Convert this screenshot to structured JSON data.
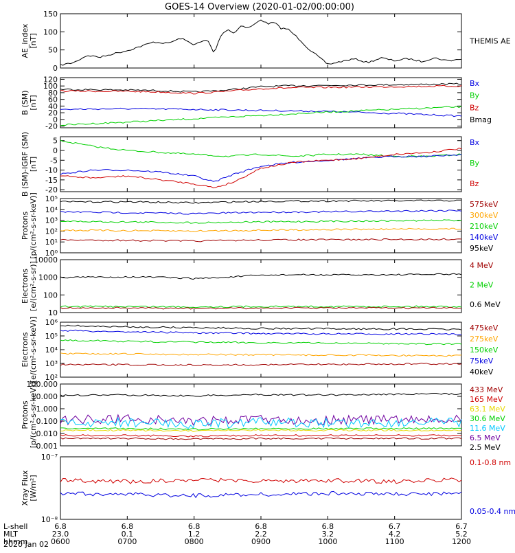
{
  "title": "GOES-14 Overview (2020-01-02/00:00:00)",
  "date_label": "2020 Jan 02",
  "footer": {
    "rows": [
      {
        "label": "L-shell",
        "values": [
          "6.8",
          "6.8",
          "6.8",
          "6.8",
          "6.8",
          "6.7",
          "6.7"
        ]
      },
      {
        "label": "MLT",
        "values": [
          "23.0",
          "0.1",
          "1.2",
          "2.2",
          "3.2",
          "4.2",
          "5.2"
        ]
      },
      {
        "label": "hhmm",
        "values": [
          "0600",
          "0700",
          "0800",
          "0900",
          "1000",
          "1100",
          "1200"
        ]
      }
    ]
  },
  "colors": {
    "black": "#000000",
    "blue": "#0000e0",
    "green": "#00d000",
    "red": "#d00000",
    "orange": "#ffa500",
    "darkred": "#a00000",
    "yellow": "#e8d800",
    "cyan": "#00c8ff",
    "purple": "#7000a0"
  },
  "chart_data": [
    {
      "type": "line",
      "ylabel": "AE_index\n[nT]",
      "yscale": "linear",
      "ylim": [
        0,
        150
      ],
      "yticks": [
        "0",
        "50",
        "100",
        "150"
      ],
      "legend": [
        {
          "name": "THEMIS AE",
          "color": "#000000"
        }
      ],
      "xlim": [
        6,
        12
      ],
      "series": [
        {
          "name": "THEMIS AE",
          "color": "#000000",
          "x": [
            6.0,
            6.2,
            6.4,
            6.6,
            6.8,
            7.0,
            7.2,
            7.4,
            7.6,
            7.8,
            8.0,
            8.2,
            8.3,
            8.4,
            8.5,
            8.6,
            8.7,
            8.8,
            8.9,
            9.0,
            9.1,
            9.2,
            9.3,
            9.4,
            9.5,
            9.6,
            9.7,
            9.8,
            10.0,
            10.2,
            10.4,
            10.6,
            10.8,
            11.0,
            11.2,
            11.4,
            11.6,
            11.8,
            12.0
          ],
          "y": [
            8,
            15,
            35,
            30,
            40,
            48,
            60,
            72,
            68,
            82,
            65,
            78,
            40,
            90,
            108,
            95,
            118,
            110,
            120,
            134,
            122,
            126,
            110,
            108,
            92,
            75,
            55,
            40,
            10,
            18,
            25,
            15,
            28,
            20,
            26,
            18,
            28,
            20,
            25
          ]
        }
      ]
    },
    {
      "type": "line",
      "ylabel": "B (SM)\n[nT]",
      "yscale": "linear",
      "ylim": [
        -25,
        125
      ],
      "yticks": [
        "-20",
        "0",
        "20",
        "40",
        "60",
        "80",
        "100",
        "120"
      ],
      "legend": [
        {
          "name": "Bx",
          "color": "#0000e0"
        },
        {
          "name": "By",
          "color": "#00d000"
        },
        {
          "name": "Bz",
          "color": "#d00000"
        },
        {
          "name": "Bmag",
          "color": "#000000"
        }
      ],
      "xlim": [
        6,
        12
      ],
      "series": [
        {
          "name": "Bmag",
          "color": "#000000",
          "x": [
            6.0,
            7.0,
            7.5,
            8.0,
            8.5,
            9.0,
            9.5,
            10.0,
            11.0,
            12.0
          ],
          "y": [
            90,
            88,
            86,
            82,
            88,
            98,
            101,
            102,
            104,
            106
          ]
        },
        {
          "name": "Bz",
          "color": "#d00000",
          "x": [
            6.0,
            7.0,
            7.5,
            8.0,
            8.5,
            9.0,
            9.5,
            10.0,
            11.0,
            12.0
          ],
          "y": [
            85,
            84,
            82,
            78,
            84,
            92,
            95,
            96,
            98,
            100
          ]
        },
        {
          "name": "Bx",
          "color": "#0000e0",
          "x": [
            6.0,
            7.0,
            8.0,
            9.0,
            10.0,
            11.0,
            12.0
          ],
          "y": [
            30,
            32,
            30,
            27,
            24,
            18,
            10
          ]
        },
        {
          "name": "By",
          "color": "#00d000",
          "x": [
            6.0,
            7.0,
            8.0,
            9.0,
            10.0,
            11.0,
            12.0
          ],
          "y": [
            -17,
            -8,
            2,
            12,
            22,
            30,
            38
          ]
        }
      ]
    },
    {
      "type": "line",
      "ylabel": "B (SM)-IGRF (SM)\n[nT]",
      "yscale": "linear",
      "ylim": [
        -21,
        7
      ],
      "yticks": [
        "-20",
        "-15",
        "-10",
        "-5",
        "0",
        "5"
      ],
      "legend": [
        {
          "name": "Bx",
          "color": "#0000e0"
        },
        {
          "name": "By",
          "color": "#00d000"
        },
        {
          "name": "Bz",
          "color": "#d00000"
        }
      ],
      "xlim": [
        6,
        12
      ],
      "series": [
        {
          "name": "By",
          "color": "#00d000",
          "x": [
            6.0,
            6.5,
            7.0,
            7.5,
            8.0,
            8.5,
            9.0,
            9.5,
            10.0,
            10.5,
            11.0,
            11.5,
            12.0
          ],
          "y": [
            5,
            2,
            0,
            -1,
            -2,
            -3,
            -2,
            -3,
            -2,
            -2,
            -3,
            -3,
            -2
          ]
        },
        {
          "name": "Bx",
          "color": "#0000e0",
          "x": [
            6.0,
            6.5,
            7.0,
            7.5,
            8.0,
            8.3,
            8.6,
            9.0,
            9.5,
            10.0,
            10.5,
            11.0,
            11.5,
            12.0
          ],
          "y": [
            -12,
            -10,
            -10,
            -11,
            -13,
            -16,
            -12,
            -8,
            -6,
            -5,
            -4,
            -3,
            -3,
            -2
          ]
        },
        {
          "name": "Bz",
          "color": "#d00000",
          "x": [
            6.0,
            6.5,
            7.0,
            7.5,
            8.0,
            8.3,
            8.6,
            9.0,
            9.5,
            10.0,
            10.5,
            11.0,
            11.5,
            12.0
          ],
          "y": [
            -13,
            -14,
            -13,
            -15,
            -17,
            -19,
            -16,
            -9,
            -6,
            -5,
            -4,
            -2,
            -1,
            1
          ]
        }
      ]
    },
    {
      "type": "line",
      "ylabel": "Protons\n[p/(cm²-s-sr-keV)]",
      "yscale": "log",
      "ylim": [
        1,
        100000
      ],
      "yticks": [
        "10⁰",
        "10¹",
        "10²",
        "10³",
        "10⁴",
        "10⁵"
      ],
      "legend": [
        {
          "name": "575keV",
          "color": "#a00000"
        },
        {
          "name": "300keV",
          "color": "#ffa500"
        },
        {
          "name": "210keV",
          "color": "#00d000"
        },
        {
          "name": "140keV",
          "color": "#0000e0"
        },
        {
          "name": "95keV",
          "color": "#000000"
        }
      ],
      "xlim": [
        6,
        12
      ],
      "series": [
        {
          "name": "95keV",
          "color": "#000000",
          "x": [
            6,
            7,
            8,
            9,
            10,
            11,
            12
          ],
          "y": [
            50000,
            50000,
            40000,
            55000,
            60000,
            62000,
            65000
          ]
        },
        {
          "name": "140keV",
          "color": "#0000e0",
          "x": [
            6,
            7,
            8,
            9,
            10,
            11,
            12
          ],
          "y": [
            6000,
            5000,
            4000,
            5500,
            6000,
            7000,
            8000
          ]
        },
        {
          "name": "210keV",
          "color": "#00d000",
          "x": [
            6,
            7,
            8,
            9,
            10,
            11,
            12
          ],
          "y": [
            800,
            700,
            600,
            700,
            800,
            900,
            1000
          ]
        },
        {
          "name": "300keV",
          "color": "#ffa500",
          "x": [
            6,
            7,
            8,
            9,
            10,
            11,
            12
          ],
          "y": [
            120,
            110,
            100,
            120,
            140,
            150,
            160
          ]
        },
        {
          "name": "575keV",
          "color": "#a00000",
          "x": [
            6,
            7,
            8,
            9,
            10,
            11,
            12
          ],
          "y": [
            15,
            14,
            12,
            15,
            16,
            17,
            18
          ]
        }
      ]
    },
    {
      "type": "line",
      "ylabel": "Electrons\n[e/(cm²-s-sr)]",
      "yscale": "log",
      "ylim": [
        10,
        10000
      ],
      "yticks": [
        "10",
        "100",
        "1000",
        "10000"
      ],
      "legend": [
        {
          "name": "4 MeV",
          "color": "#a00000"
        },
        {
          "name": "2 MeV",
          "color": "#00d000"
        },
        {
          "name": "0.6 MeV",
          "color": "#000000"
        }
      ],
      "xlim": [
        6,
        12
      ],
      "series": [
        {
          "name": "0.6 MeV",
          "color": "#000000",
          "x": [
            6.0,
            7.0,
            7.5,
            8.0,
            8.5,
            9.0,
            9.5,
            10.0,
            11.0,
            12.0
          ],
          "y": [
            1000,
            1050,
            1000,
            850,
            1000,
            1300,
            1400,
            1350,
            1400,
            1500
          ]
        },
        {
          "name": "2 MeV",
          "color": "#00d000",
          "x": [
            6,
            7,
            8,
            9,
            10,
            11,
            12
          ],
          "y": [
            22,
            22,
            21,
            22,
            22,
            22,
            22
          ]
        },
        {
          "name": "4 MeV",
          "color": "#a00000",
          "x": [
            6,
            7,
            8,
            9,
            10,
            11,
            12
          ],
          "y": [
            18,
            18,
            17,
            18,
            18,
            18,
            18
          ]
        }
      ]
    },
    {
      "type": "line",
      "ylabel": "Electrons\n[e/(cm²-s-sr-keV)]",
      "yscale": "log",
      "ylim": [
        100,
        1000000
      ],
      "yticks": [
        "10²",
        "10³",
        "10⁴",
        "10⁵",
        "10⁶"
      ],
      "legend": [
        {
          "name": "475keV",
          "color": "#a00000"
        },
        {
          "name": "275keV",
          "color": "#ffa500"
        },
        {
          "name": "150keV",
          "color": "#00d000"
        },
        {
          "name": "75keV",
          "color": "#0000e0"
        },
        {
          "name": "40keV",
          "color": "#000000"
        }
      ],
      "xlim": [
        6,
        12
      ],
      "series": [
        {
          "name": "40keV",
          "color": "#000000",
          "x": [
            6.0,
            6.5,
            7.0,
            8.0,
            9.0,
            10.0,
            11.0,
            12.0
          ],
          "y": [
            600000,
            500000,
            450000,
            400000,
            350000,
            330000,
            320000,
            300000
          ]
        },
        {
          "name": "75keV",
          "color": "#0000e0",
          "x": [
            6.0,
            6.5,
            7.0,
            8.0,
            9.0,
            10.0,
            11.0,
            12.0
          ],
          "y": [
            250000,
            220000,
            200000,
            170000,
            150000,
            140000,
            140000,
            130000
          ]
        },
        {
          "name": "150keV",
          "color": "#00d000",
          "x": [
            6.0,
            6.5,
            7.0,
            8.0,
            9.0,
            10.0,
            11.0,
            12.0
          ],
          "y": [
            50000,
            45000,
            40000,
            35000,
            32000,
            30000,
            28000,
            25000
          ]
        },
        {
          "name": "275keV",
          "color": "#ffa500",
          "x": [
            6,
            7,
            8,
            9,
            10,
            11,
            12
          ],
          "y": [
            5000,
            4800,
            4500,
            4200,
            4000,
            3800,
            3600
          ]
        },
        {
          "name": "475keV",
          "color": "#a00000",
          "x": [
            6,
            7,
            8,
            9,
            10,
            11,
            12
          ],
          "y": [
            800,
            800,
            750,
            800,
            850,
            900,
            950
          ]
        }
      ]
    },
    {
      "type": "line",
      "ylabel": "Protons\n[p/(cm²-s-sr-keV)]",
      "yscale": "log",
      "ylim": [
        0.001,
        100
      ],
      "yticks": [
        "0.001",
        "0.010",
        "0.100",
        "1.000",
        "10.000",
        "100.000"
      ],
      "legend": [
        {
          "name": "433 MeV",
          "color": "#a00000"
        },
        {
          "name": "165 MeV",
          "color": "#d00000"
        },
        {
          "name": "63.1 MeV",
          "color": "#e8d800"
        },
        {
          "name": "30.6 MeV",
          "color": "#00d000"
        },
        {
          "name": "11.6 MeV",
          "color": "#00c8ff"
        },
        {
          "name": "6.5 MeV",
          "color": "#7000a0"
        },
        {
          "name": "2.5 MeV",
          "color": "#000000"
        }
      ],
      "xlim": [
        6,
        12
      ],
      "series": [
        {
          "name": "2.5 MeV",
          "color": "#000000",
          "x": [
            6,
            7,
            8,
            9,
            10,
            11,
            12
          ],
          "y": [
            12,
            13,
            11,
            14,
            13,
            15,
            16
          ]
        },
        {
          "name": "6.5 MeV",
          "color": "#7000a0",
          "x": [
            6,
            7,
            8,
            9,
            10,
            11,
            12
          ],
          "y": [
            0.12,
            0.15,
            0.1,
            0.14,
            0.12,
            0.13,
            0.12
          ]
        },
        {
          "name": "11.6 MeV",
          "color": "#00c8ff",
          "x": [
            6,
            7,
            8,
            9,
            10,
            11,
            12
          ],
          "y": [
            0.07,
            0.08,
            0.06,
            0.08,
            0.07,
            0.08,
            0.07
          ]
        },
        {
          "name": "30.6 MeV",
          "color": "#00d000",
          "x": [
            6,
            7,
            8,
            9,
            10,
            11,
            12
          ],
          "y": [
            0.025,
            0.025,
            0.022,
            0.025,
            0.025,
            0.025,
            0.025
          ]
        },
        {
          "name": "63.1 MeV",
          "color": "#e8d800",
          "x": [
            6,
            7,
            8,
            9,
            10,
            11,
            12
          ],
          "y": [
            0.018,
            0.018,
            0.016,
            0.018,
            0.018,
            0.018,
            0.018
          ]
        },
        {
          "name": "165 MeV",
          "color": "#d00000",
          "x": [
            6,
            7,
            8,
            9,
            10,
            11,
            12
          ],
          "y": [
            0.007,
            0.007,
            0.006,
            0.007,
            0.007,
            0.007,
            0.007
          ]
        },
        {
          "name": "433 MeV",
          "color": "#a00000",
          "x": [
            6,
            7,
            8,
            9,
            10,
            11,
            12
          ],
          "y": [
            0.004,
            0.004,
            0.0035,
            0.004,
            0.004,
            0.004,
            0.004
          ]
        }
      ]
    },
    {
      "type": "line",
      "ylabel": "Xray Flux\n[W/m²]",
      "yscale": "log",
      "ylim": [
        1e-08,
        1e-07
      ],
      "yticks": [
        "10⁻⁸",
        "10⁻⁷"
      ],
      "legend": [
        {
          "name": "0.1-0.8 nm",
          "color": "#d00000"
        },
        {
          "name": "0.05-0.4 nm",
          "color": "#0000e0"
        }
      ],
      "xlim": [
        6,
        12
      ],
      "series": [
        {
          "name": "0.1-0.8 nm",
          "color": "#d00000",
          "x": [
            6,
            7,
            8,
            9,
            10,
            11,
            12
          ],
          "y": [
            4.2e-08,
            4e-08,
            4.3e-08,
            4.1e-08,
            4.2e-08,
            4e-08,
            4.3e-08
          ]
        },
        {
          "name": "0.05-0.4 nm",
          "color": "#0000e0",
          "x": [
            6,
            7,
            8,
            9,
            10,
            11,
            12
          ],
          "y": [
            2.6e-08,
            2.5e-08,
            2.4e-08,
            2.5e-08,
            2.6e-08,
            2.5e-08,
            2.6e-08
          ]
        }
      ]
    }
  ]
}
